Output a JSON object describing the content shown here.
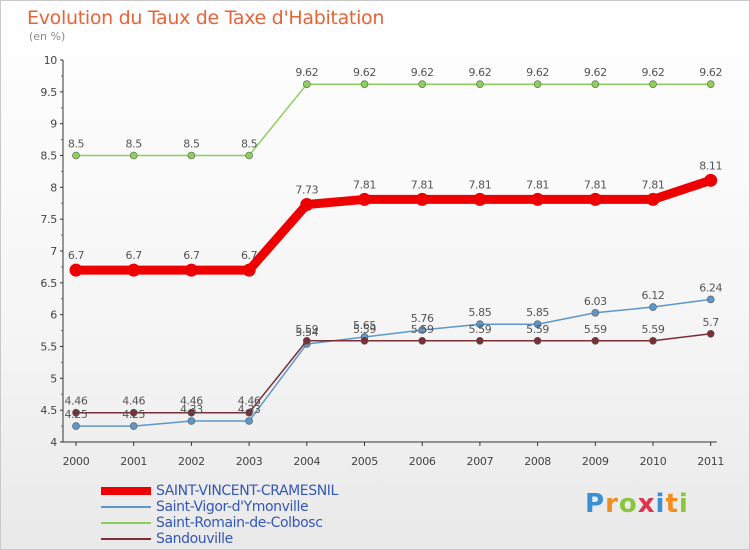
{
  "chart_data": {
    "type": "line",
    "title": "Evolution du Taux de Taxe d'Habitation",
    "subtitle": "(en %)",
    "xlabel": "",
    "ylabel": "",
    "ylim": [
      4,
      10
    ],
    "yticks": [
      "4",
      "4.5",
      "5",
      "5.5",
      "6",
      "6.5",
      "7",
      "7.5",
      "8",
      "8.5",
      "9",
      "9.5",
      "10"
    ],
    "x": [
      "2000",
      "2001",
      "2002",
      "2003",
      "2004",
      "2005",
      "2006",
      "2007",
      "2008",
      "2009",
      "2010",
      "2011"
    ],
    "grid": false,
    "legend_position": "bottom-left",
    "series": [
      {
        "name": "SAINT-VINCENT-CRAMESNIL",
        "color": "#ee0000",
        "values": [
          6.7,
          6.7,
          6.7,
          6.7,
          7.73,
          7.81,
          7.81,
          7.81,
          7.81,
          7.81,
          7.81,
          8.11
        ],
        "labels": [
          "6.7",
          "6.7",
          "6.7",
          "6.7",
          "7.73",
          "7.81",
          "7.81",
          "7.81",
          "7.81",
          "7.81",
          "7.81",
          "8.11"
        ]
      },
      {
        "name": "Saint-Vigor-d'Ymonville",
        "color": "#5e97c9",
        "values": [
          4.25,
          4.25,
          4.33,
          4.33,
          5.54,
          5.65,
          5.76,
          5.85,
          5.85,
          6.03,
          6.12,
          6.24
        ],
        "labels": [
          "4.25",
          "4.25",
          "4.33",
          "4.33",
          "5.54",
          "5.65",
          "5.76",
          "5.85",
          "5.85",
          "6.03",
          "6.12",
          "6.24"
        ]
      },
      {
        "name": "Saint-Romain-de-Colbosc",
        "color": "#8ccf5a",
        "values": [
          8.5,
          8.5,
          8.5,
          8.5,
          9.62,
          9.62,
          9.62,
          9.62,
          9.62,
          9.62,
          9.62,
          9.62
        ],
        "labels": [
          "8.5",
          "8.5",
          "8.5",
          "8.5",
          "9.62",
          "9.62",
          "9.62",
          "9.62",
          "9.62",
          "9.62",
          "9.62",
          "9.62"
        ]
      },
      {
        "name": "Sandouville",
        "color": "#7a2e36",
        "values": [
          4.46,
          4.46,
          4.46,
          4.46,
          5.59,
          5.59,
          5.59,
          5.59,
          5.59,
          5.59,
          5.59,
          5.7
        ],
        "labels": [
          "4.46",
          "4.46",
          "4.46",
          "4.46",
          "5.59",
          "5.59",
          "5.59",
          "5.59",
          "5.59",
          "5.59",
          "5.59",
          "5.7"
        ]
      }
    ]
  },
  "brand": {
    "letters": [
      "P",
      "r",
      "o",
      "x",
      "i",
      "t",
      "i"
    ],
    "colors": [
      "#3a8fd6",
      "#f28c1e",
      "#8cc63f",
      "#e2324d",
      "#3a8fd6",
      "#f28c1e",
      "#8cc63f"
    ]
  }
}
